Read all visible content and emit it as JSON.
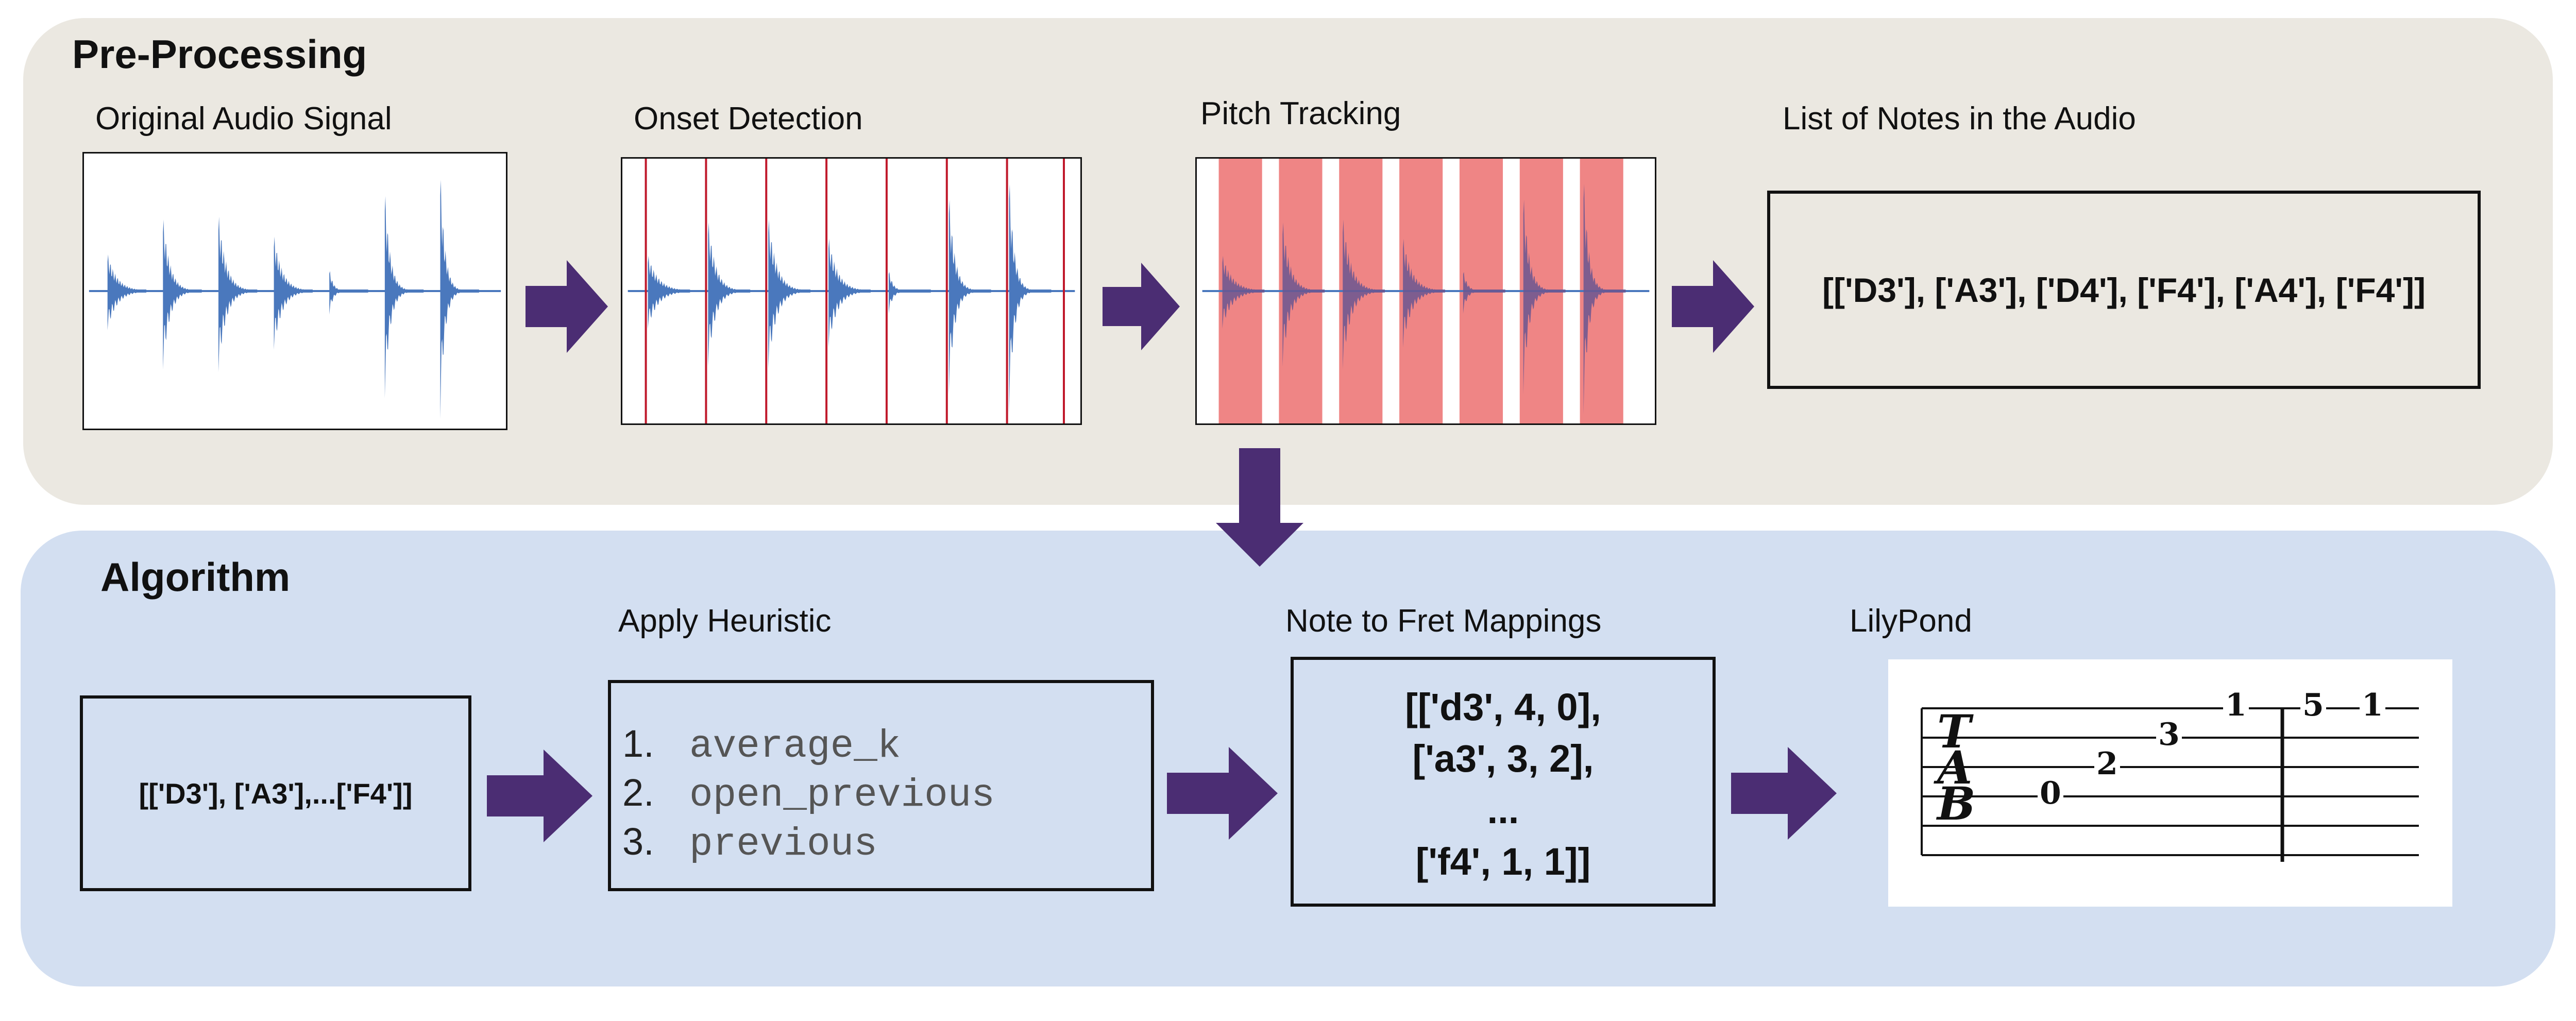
{
  "preprocessing": {
    "title": "Pre-Processing",
    "steps": {
      "original_audio": "Original Audio Signal",
      "onset_detection": "Onset Detection",
      "pitch_tracking": "Pitch Tracking",
      "list_of_notes": "List of Notes in the Audio"
    },
    "notes_list": "[['D3'], ['A3'], ['D4'], ['F4'], ['A4'], ['F4']]"
  },
  "algorithm": {
    "title": "Algorithm",
    "input_notes": "[['D3'], ['A3'],...['F4']]",
    "heuristic": {
      "label": "Apply Heuristic",
      "items": [
        {
          "num": "1.",
          "text": "average_k"
        },
        {
          "num": "2.",
          "text": "open_previous"
        },
        {
          "num": "3.",
          "text": "previous"
        }
      ]
    },
    "fret_mappings": {
      "label": "Note to Fret Mappings",
      "lines": [
        "[['d3', 4, 0],",
        "['a3', 3, 2],",
        "...",
        "['f4', 1, 1]]"
      ]
    },
    "lilypond": {
      "label": "LilyPond",
      "clef": [
        "T",
        "A",
        "B"
      ],
      "frets": [
        "0",
        "2",
        "3",
        "1",
        "5",
        "1"
      ]
    }
  },
  "colors": {
    "waveform": "#4a78bd",
    "onset_line": "#c0192b",
    "pitch_band": "#ef8585",
    "arrow": "#4b2d73"
  }
}
